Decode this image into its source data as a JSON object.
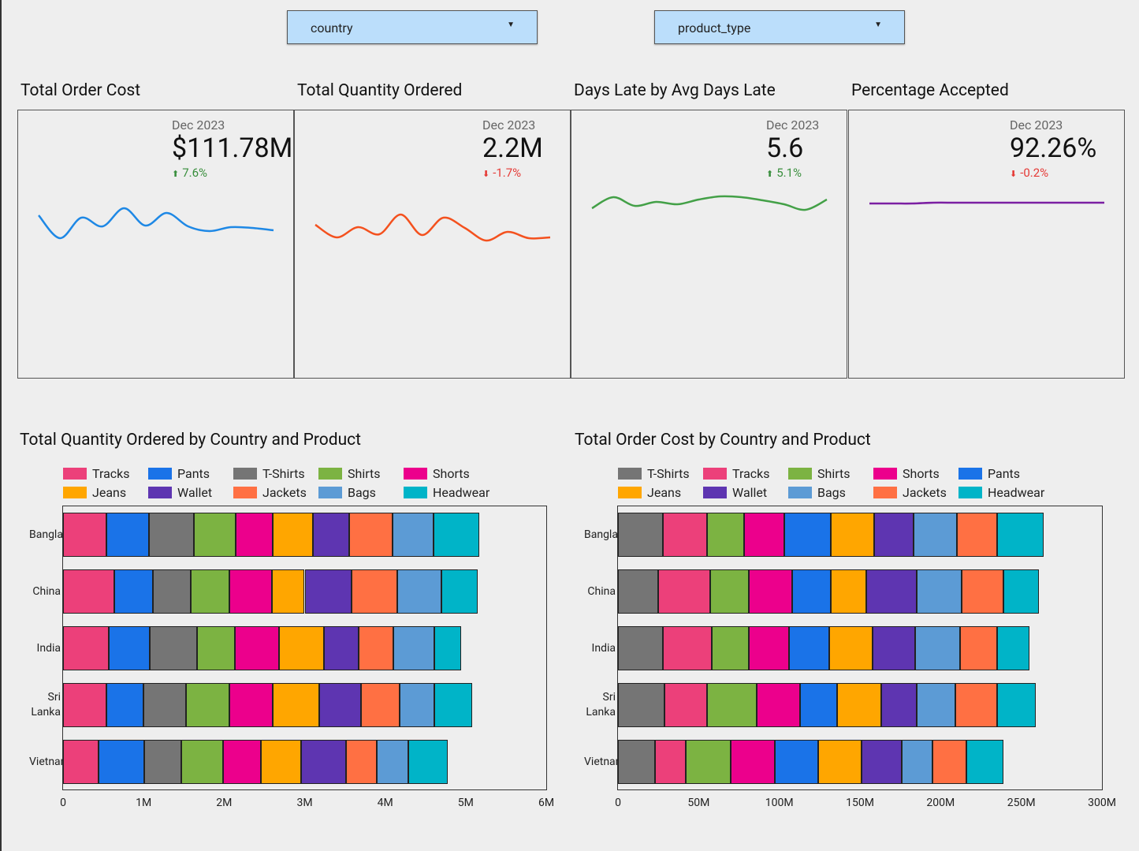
{
  "filters": [
    "country",
    "product_type"
  ],
  "scorecards": [
    {
      "title": "Total Order Cost",
      "period": "Dec 2023",
      "value": "$111.78M",
      "change": "7.6%"
    },
    {
      "title": "Total Quantity Ordered",
      "period": "Dec 2023",
      "value": "2.2M",
      "change": "-1.7%"
    },
    {
      "title": "Days Late by Avg Days Late",
      "period": "Dec 2023",
      "value": "5.6",
      "change": "5.1%"
    },
    {
      "title": "Percentage Accepted",
      "period": "Dec 2023",
      "value": "92.26%",
      "change": "-0.2%"
    }
  ],
  "chart_data": [
    {
      "type": "line",
      "color": "#1e88e5",
      "ylim": [
        0,
        90
      ],
      "values": [
        48,
        19,
        45,
        34,
        57,
        35,
        51,
        34,
        28,
        33,
        32,
        29
      ]
    },
    {
      "type": "line",
      "color": "#f4511e",
      "ylim": [
        0,
        90
      ],
      "values": [
        36,
        20,
        33,
        24,
        49,
        23,
        45,
        32,
        16,
        27,
        19,
        20
      ]
    },
    {
      "type": "line",
      "color": "#43a047",
      "ylim": [
        0,
        90
      ],
      "values": [
        57,
        71,
        60,
        65,
        62,
        68,
        72,
        71,
        67,
        62,
        55,
        68
      ]
    },
    {
      "type": "line",
      "color": "#7b1fa2",
      "ylim": [
        0,
        90
      ],
      "values": [
        63,
        63,
        63,
        64,
        64,
        64,
        64,
        64,
        64,
        64,
        64,
        64
      ]
    },
    {
      "type": "bar",
      "title": "Total Quantity Ordered by Country and Product",
      "categories": [
        "Bangla…",
        "China",
        "India",
        "Sri Lanka",
        "Vietnam"
      ],
      "xlim": [
        0,
        6000000
      ],
      "xticks": [
        0,
        {
          "value": 1000000,
          "label": "1M"
        },
        {
          "value": 2000000,
          "label": "2M"
        },
        {
          "value": 3000000,
          "label": "3M"
        },
        {
          "value": 4000000,
          "label": "4M"
        },
        {
          "value": 5000000,
          "label": "5M"
        },
        {
          "value": 6000000,
          "label": "6M"
        }
      ],
      "series": [
        {
          "name": "Tracks",
          "color": "#ec407a",
          "values": [
            540000,
            640000,
            570000,
            540000,
            440000
          ]
        },
        {
          "name": "Pants",
          "color": "#1a73e8",
          "values": [
            530000,
            480000,
            510000,
            460000,
            570000
          ]
        },
        {
          "name": "T-Shirts",
          "color": "#757575",
          "values": [
            550000,
            470000,
            580000,
            530000,
            460000
          ]
        },
        {
          "name": "Shirts",
          "color": "#7cb342",
          "values": [
            520000,
            480000,
            470000,
            540000,
            520000
          ]
        },
        {
          "name": "Shorts",
          "color": "#ec008c",
          "values": [
            460000,
            520000,
            550000,
            530000,
            470000
          ]
        },
        {
          "name": "Jeans",
          "color": "#ffa600",
          "values": [
            500000,
            410000,
            560000,
            580000,
            500000
          ]
        },
        {
          "name": "Wallet",
          "color": "#5e35b1",
          "values": [
            450000,
            580000,
            430000,
            520000,
            550000
          ]
        },
        {
          "name": "Jackets",
          "color": "#ff7043",
          "values": [
            540000,
            570000,
            430000,
            480000,
            390000
          ]
        },
        {
          "name": "Bags",
          "color": "#5c9bd5",
          "values": [
            510000,
            550000,
            510000,
            430000,
            390000
          ]
        },
        {
          "name": "Headwear",
          "color": "#00b4c8",
          "values": [
            570000,
            450000,
            330000,
            470000,
            490000
          ]
        }
      ]
    },
    {
      "type": "bar",
      "title": "Total Order Cost by Country and Product",
      "categories": [
        "Bangla…",
        "China",
        "India",
        "Sri Lanka",
        "Vietnam"
      ],
      "xlim": [
        0,
        300000000
      ],
      "xticks": [
        0,
        {
          "value": 50000000,
          "label": "50M"
        },
        {
          "value": 100000000,
          "label": "100M"
        },
        {
          "value": 150000000,
          "label": "150M"
        },
        {
          "value": 200000000,
          "label": "200M"
        },
        {
          "value": 250000000,
          "label": "250M"
        },
        {
          "value": 300000000,
          "label": "300M"
        }
      ],
      "series": [
        {
          "name": "T-Shirts",
          "color": "#757575",
          "values": [
            28000000,
            25000000,
            28000000,
            29000000,
            23000000
          ]
        },
        {
          "name": "Tracks",
          "color": "#ec407a",
          "values": [
            27000000,
            32000000,
            30000000,
            26000000,
            19000000
          ]
        },
        {
          "name": "Shirts",
          "color": "#7cb342",
          "values": [
            23000000,
            24000000,
            23000000,
            31000000,
            28000000
          ]
        },
        {
          "name": "Shorts",
          "color": "#ec008c",
          "values": [
            25000000,
            27000000,
            25000000,
            27000000,
            27000000
          ]
        },
        {
          "name": "Pants",
          "color": "#1a73e8",
          "values": [
            29000000,
            24000000,
            25000000,
            23000000,
            27000000
          ]
        },
        {
          "name": "Jeans",
          "color": "#ffa600",
          "values": [
            27000000,
            22000000,
            27000000,
            27000000,
            27000000
          ]
        },
        {
          "name": "Wallet",
          "color": "#5e35b1",
          "values": [
            24000000,
            31000000,
            26000000,
            22000000,
            25000000
          ]
        },
        {
          "name": "Bags",
          "color": "#5c9bd5",
          "values": [
            27000000,
            28000000,
            28000000,
            24000000,
            19000000
          ]
        },
        {
          "name": "Jackets",
          "color": "#ff7043",
          "values": [
            25000000,
            26000000,
            23000000,
            26000000,
            21000000
          ]
        },
        {
          "name": "Headwear",
          "color": "#00b4c8",
          "values": [
            29000000,
            22000000,
            20000000,
            24000000,
            23000000
          ]
        }
      ]
    }
  ]
}
